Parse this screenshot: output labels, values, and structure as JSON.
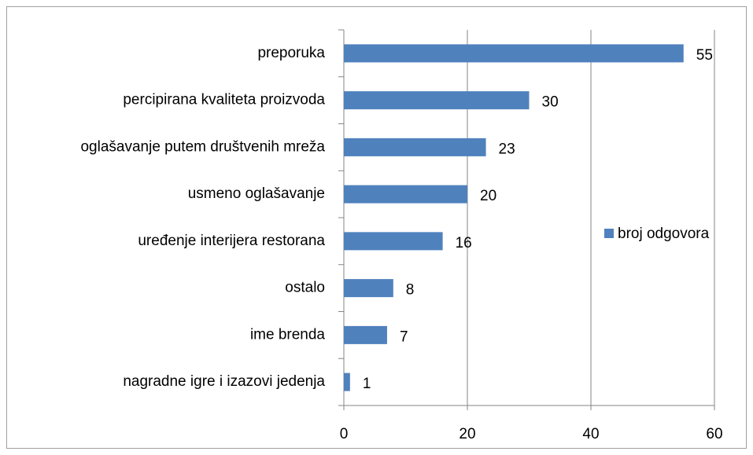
{
  "chart_data": {
    "type": "hbar",
    "categories": [
      "preporuka",
      "percipirana kvaliteta proizvoda",
      "oglašavanje putem društvenih mreža",
      "usmeno oglašavanje",
      "uređenje interijera restorana",
      "ostalo",
      "ime brenda",
      "nagradne igre i izazovi jedenja"
    ],
    "series": [
      {
        "name": "broj odgovora",
        "color": "#4f81bd",
        "values": [
          55,
          30,
          23,
          20,
          16,
          8,
          7,
          1
        ]
      }
    ],
    "xlim": [
      0,
      60
    ],
    "xticks": [
      0,
      20,
      40,
      60
    ],
    "grid": true,
    "legend": "right"
  }
}
